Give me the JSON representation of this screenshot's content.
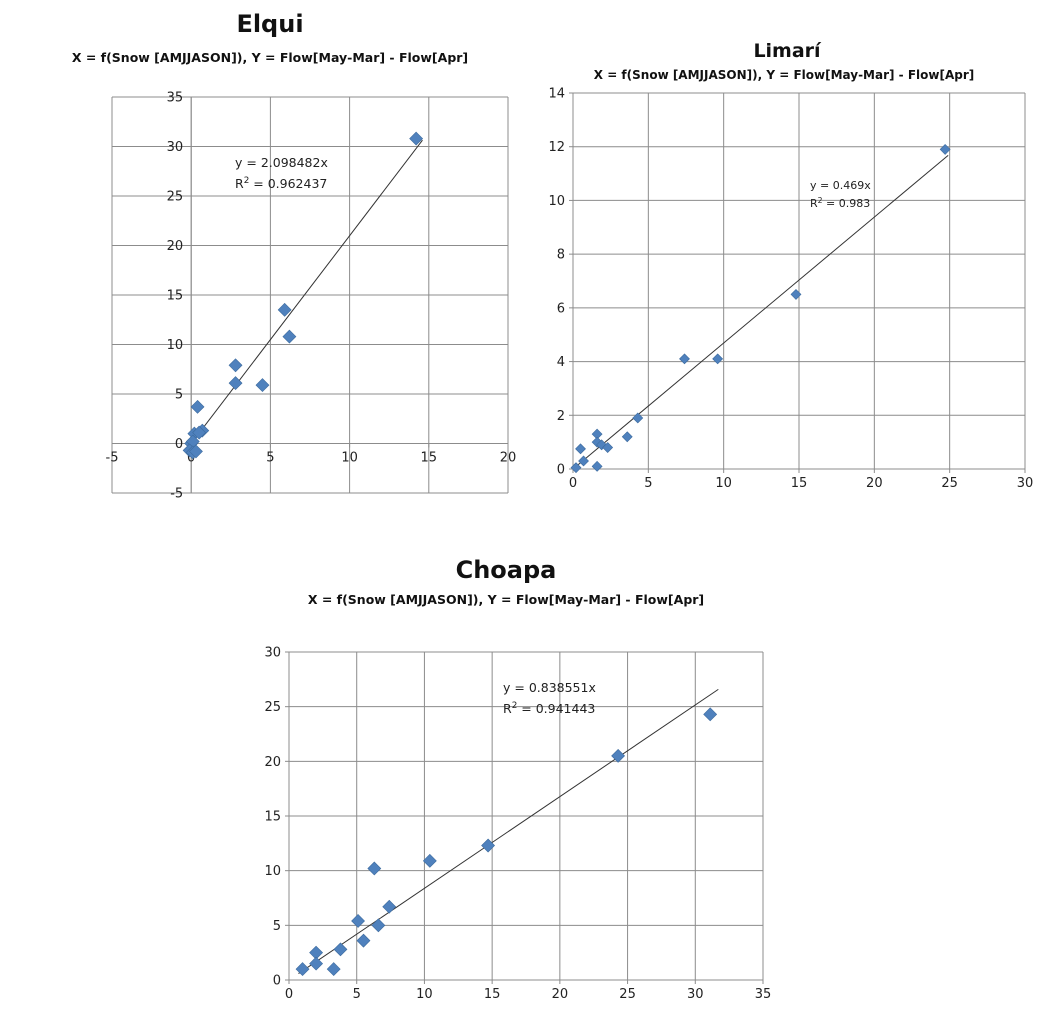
{
  "chart_data": [
    {
      "type": "scatter",
      "title": "Elqui",
      "subtitle": "X = f(Snow [AMJJASON]), Y = Flow[May-Mar] - Flow[Apr]",
      "xlim": [
        -5,
        20
      ],
      "ylim": [
        -5,
        35
      ],
      "x_ticks": [
        -5,
        0,
        5,
        10,
        15,
        20
      ],
      "y_ticks": [
        -5,
        0,
        5,
        10,
        15,
        20,
        25,
        30,
        35
      ],
      "x_tick_labels": [
        "-5",
        "0",
        "5",
        "10",
        "15",
        "20"
      ],
      "y_tick_labels": [
        "-5",
        "0",
        "5",
        "10",
        "15",
        "20",
        "25",
        "30",
        "35"
      ],
      "grid": "vertical and horizontal",
      "series": [
        {
          "points": [
            [
              14.2,
              30.8
            ],
            [
              5.9,
              13.5
            ],
            [
              6.2,
              10.8
            ],
            [
              2.8,
              7.9
            ],
            [
              2.8,
              6.1
            ],
            [
              4.5,
              5.9
            ],
            [
              0.4,
              3.7
            ],
            [
              0.2,
              1.0
            ],
            [
              0.7,
              1.3
            ],
            [
              0.5,
              1.1
            ],
            [
              0.0,
              0.0
            ],
            [
              0.1,
              0.2
            ],
            [
              -0.1,
              -0.7
            ],
            [
              0.1,
              -0.9
            ],
            [
              0.3,
              -0.8
            ]
          ]
        }
      ],
      "trendline": {
        "slope": 2.098482,
        "x_range": [
          -0.3,
          14.6
        ]
      },
      "equation_label": "y = 2.098482x",
      "r2_prefix": "R",
      "r2_value": " = 0.962437"
    },
    {
      "type": "scatter",
      "title": "Limarí",
      "subtitle": "X = f(Snow [AMJJASON]), Y = Flow[May-Mar] - Flow[Apr]",
      "xlim": [
        0,
        30
      ],
      "ylim": [
        0,
        14
      ],
      "x_ticks": [
        0,
        5,
        10,
        15,
        20,
        25,
        30
      ],
      "y_ticks": [
        0,
        2,
        4,
        6,
        8,
        10,
        12,
        14
      ],
      "x_tick_labels": [
        "0",
        "5",
        "10",
        "15",
        "20",
        "25",
        "30"
      ],
      "y_tick_labels": [
        "0",
        "2",
        "4",
        "6",
        "8",
        "10",
        "12",
        "14"
      ],
      "grid": "vertical and horizontal",
      "series": [
        {
          "points": [
            [
              24.7,
              11.9
            ],
            [
              14.8,
              6.5
            ],
            [
              7.4,
              4.1
            ],
            [
              9.6,
              4.1
            ],
            [
              4.3,
              1.9
            ],
            [
              3.6,
              1.2
            ],
            [
              1.6,
              1.3
            ],
            [
              1.6,
              1.0
            ],
            [
              1.9,
              0.9
            ],
            [
              2.3,
              0.8
            ],
            [
              0.5,
              0.75
            ],
            [
              0.7,
              0.3
            ],
            [
              1.6,
              0.1
            ],
            [
              0.2,
              0.05
            ]
          ]
        }
      ],
      "trendline": {
        "slope": 0.469,
        "x_range": [
          0.3,
          24.9
        ]
      },
      "equation_label": "y = 0.469x",
      "r2_prefix": "R",
      "r2_value": " = 0.983"
    },
    {
      "type": "scatter",
      "title": "Choapa",
      "subtitle": "X = f(Snow  [AMJJASON]),  Y = Flow[May-Mar]  - Flow[Apr]",
      "xlim": [
        0,
        35
      ],
      "ylim": [
        0,
        30
      ],
      "x_ticks": [
        0,
        5,
        10,
        15,
        20,
        25,
        30,
        35
      ],
      "y_ticks": [
        0,
        5,
        10,
        15,
        20,
        25,
        30
      ],
      "x_tick_labels": [
        "0",
        "5",
        "10",
        "15",
        "20",
        "25",
        "30",
        "35"
      ],
      "y_tick_labels": [
        "0",
        "5",
        "10",
        "15",
        "20",
        "25",
        "30"
      ],
      "grid": "vertical and horizontal",
      "series": [
        {
          "points": [
            [
              31.1,
              24.3
            ],
            [
              24.3,
              20.5
            ],
            [
              14.7,
              12.3
            ],
            [
              10.4,
              10.9
            ],
            [
              6.3,
              10.2
            ],
            [
              7.4,
              6.7
            ],
            [
              5.1,
              5.4
            ],
            [
              6.6,
              5.0
            ],
            [
              5.5,
              3.6
            ],
            [
              3.8,
              2.8
            ],
            [
              2.0,
              2.5
            ],
            [
              2.0,
              1.5
            ],
            [
              3.3,
              1.0
            ],
            [
              1.0,
              1.0
            ]
          ]
        }
      ],
      "trendline": {
        "slope": 0.838551,
        "x_range": [
          0.7,
          31.7
        ]
      },
      "equation_label": "y = 0.838551x",
      "r2_prefix": "R",
      "r2_value": " = 0.941443"
    }
  ]
}
